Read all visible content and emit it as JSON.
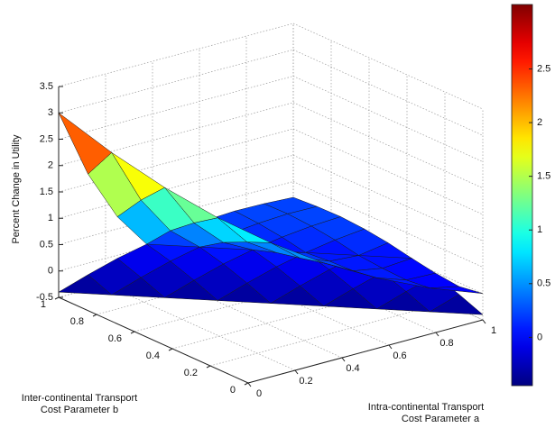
{
  "chart_data": {
    "type": "surface",
    "xlabel": [
      "Intra-continental Transport",
      "Cost Parameter a"
    ],
    "ylabel": [
      "Inter-continental Transport",
      "Cost Parameter b"
    ],
    "zlabel": "Percent Change in Utility",
    "x": [
      0,
      0.125,
      0.25,
      0.375,
      0.5,
      0.625,
      0.75,
      0.875,
      1
    ],
    "y": [
      0,
      0.125,
      0.25,
      0.375,
      0.5,
      0.625,
      0.75,
      0.875,
      1
    ],
    "surfaces": [
      {
        "z": [
          [
            null,
            null,
            null,
            null,
            null,
            null,
            null,
            null,
            -0.4
          ],
          [
            null,
            null,
            null,
            null,
            null,
            null,
            null,
            -0.4,
            -0.22
          ],
          [
            null,
            null,
            null,
            null,
            null,
            null,
            -0.4,
            -0.22,
            -0.06
          ],
          [
            null,
            null,
            null,
            null,
            null,
            -0.4,
            -0.22,
            -0.06,
            0.06
          ],
          [
            null,
            null,
            null,
            null,
            -0.4,
            -0.22,
            -0.06,
            0.06,
            0.15
          ],
          [
            null,
            null,
            null,
            -0.4,
            -0.22,
            -0.06,
            0.06,
            0.15,
            0.21
          ],
          [
            null,
            null,
            -0.4,
            -0.22,
            -0.06,
            0.06,
            0.15,
            0.21,
            0.24
          ],
          [
            null,
            -0.4,
            -0.22,
            -0.06,
            0.06,
            0.15,
            0.21,
            0.24,
            0.23
          ],
          [
            -0.4,
            -0.22,
            -0.06,
            0.06,
            0.15,
            0.21,
            0.24,
            0.23,
            0.2
          ]
        ]
      },
      {
        "z": [
          [
            null,
            null,
            null,
            null,
            null,
            null,
            null,
            null,
            0
          ],
          [
            null,
            null,
            null,
            null,
            null,
            null,
            null,
            0.05,
            -0.07
          ],
          [
            null,
            null,
            null,
            null,
            null,
            null,
            0.19,
            0.0,
            -0.02
          ],
          [
            null,
            null,
            null,
            null,
            null,
            0.42,
            0.12,
            0.02,
            0.06
          ],
          [
            null,
            null,
            null,
            null,
            0.75,
            0.31,
            0.1,
            0.06,
            null
          ],
          [
            null,
            null,
            null,
            1.17,
            0.56,
            0.21,
            0.06,
            null,
            null
          ],
          [
            null,
            null,
            1.69,
            0.87,
            0.35,
            0.06,
            null,
            null,
            null
          ],
          [
            null,
            2.3,
            1.25,
            0.52,
            0.06,
            null,
            null,
            null,
            null
          ],
          [
            3,
            1.69,
            0.73,
            0.06,
            null,
            null,
            null,
            null,
            null
          ]
        ]
      }
    ],
    "xlim": [
      0,
      1
    ],
    "ylim": [
      0,
      1
    ],
    "zlim": [
      -0.5,
      3.5
    ],
    "xticks": [
      0,
      0.2,
      0.4,
      0.6,
      0.8,
      1
    ],
    "yticks": [
      0,
      0.2,
      0.4,
      0.6,
      0.8,
      1
    ],
    "zticks": [
      -0.5,
      0,
      0.5,
      1,
      1.5,
      2,
      2.5,
      3,
      3.5
    ],
    "colormap": "jet",
    "clim": [
      -0.45,
      3.1
    ],
    "colorbar_ticks": [
      0,
      0.5,
      1,
      1.5,
      2,
      2.5
    ],
    "grid": true
  }
}
